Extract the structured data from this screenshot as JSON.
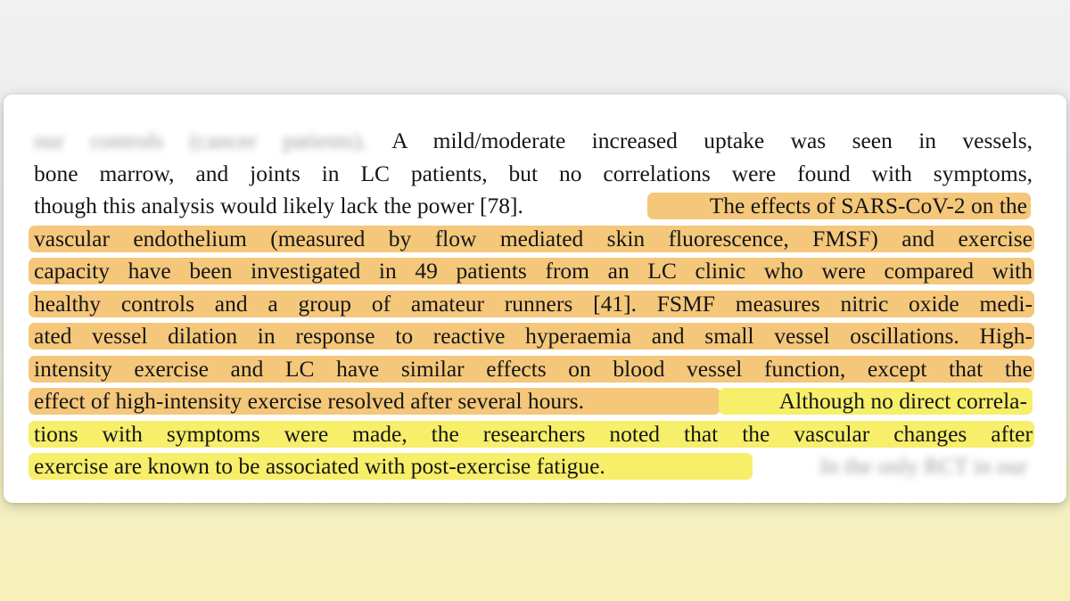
{
  "document": {
    "lines": [
      {
        "blurred_prefix": "our controls (cancer patients).",
        "text": "A mild/moderate increased uptake was seen in vessels,"
      },
      {
        "text": "bone marrow, and joints in LC patients, but no correlations were found with symptoms,"
      },
      {
        "plain": "though this analysis would likely lack the power [78].",
        "highlight_orange": "The effects of SARS-CoV-2 on the"
      },
      {
        "highlight_orange": "vascular endothelium (measured by flow mediated skin fluorescence, FMSF) and exercise"
      },
      {
        "highlight_orange": "capacity have been investigated in 49 patients from an LC clinic who were compared with"
      },
      {
        "highlight_orange": "healthy controls and a group of amateur runners [41]. FSMF measures nitric oxide medi-"
      },
      {
        "highlight_orange": "ated vessel dilation in response to reactive hyperaemia and small vessel oscillations. High-"
      },
      {
        "highlight_orange": "intensity exercise and LC have similar effects on blood vessel function, except that the"
      },
      {
        "highlight_orange": "effect of high-intensity exercise resolved after several hours.",
        "highlight_yellow": "Although no direct correla-"
      },
      {
        "highlight_yellow": "tions with symptoms were made, the researchers noted that the vascular changes after"
      },
      {
        "highlight_yellow": "exercise are known to be associated with post-exercise fatigue.",
        "blurred_suffix": "In the only RCT in our"
      }
    ],
    "colors": {
      "orange_highlight": "#f4c77a",
      "yellow_highlight": "#f7ee6a",
      "text": "#161616"
    }
  }
}
